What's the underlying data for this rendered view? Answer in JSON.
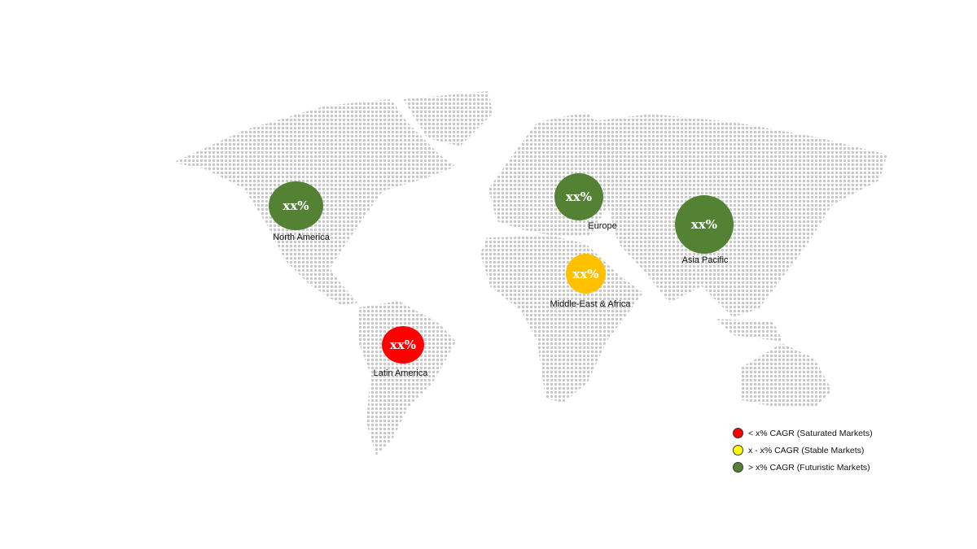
{
  "regions": [
    {
      "name": "North America",
      "value": "xx%",
      "color": "#548235"
    },
    {
      "name": "Europe",
      "value": "xx%",
      "color": "#548235"
    },
    {
      "name": "Asia Pacific",
      "value": "xx%",
      "color": "#548235"
    },
    {
      "name": "Middle-East & Africa",
      "value": "xx%",
      "color": "#ffc000"
    },
    {
      "name": "Latin America",
      "value": "xx%",
      "color": "#ff0000"
    }
  ],
  "legend": [
    {
      "label": "< x% CAGR (Saturated Markets)",
      "color": "#ff0000"
    },
    {
      "label": "x - x% CAGR (Stable Markets)",
      "color": "#ffff00"
    },
    {
      "label": "> x% CAGR (Futuristic Markets)",
      "color": "#548235"
    }
  ],
  "map": {
    "dot_color": "#c8c8c8"
  }
}
